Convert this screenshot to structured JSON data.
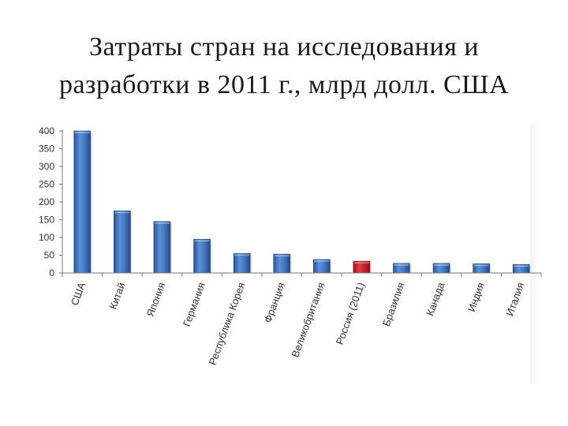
{
  "title": {
    "line1": "Затраты стран на исследования и",
    "line2": "разработки в 2011 г., млрд долл. США"
  },
  "colors": {
    "bar": "#3e6eb8",
    "highlight": "#c8202b",
    "axis": "#7a7a7a",
    "grid_shadow": "#eeeeee"
  },
  "chart_data": {
    "type": "bar",
    "title": "Затраты стран на исследования и разработки в 2011 г., млрд долл. США",
    "xlabel": "",
    "ylabel": "",
    "ylim": [
      0,
      400
    ],
    "yticks": [
      0,
      50,
      100,
      150,
      200,
      250,
      300,
      350,
      400
    ],
    "grid": false,
    "categories": [
      "США",
      "Китай",
      "Япония",
      "Германия",
      "Республика Корея",
      "Франция",
      "Великобритания",
      "Россия (2011)",
      "Бразилия",
      "Канада",
      "Индия",
      "Италия"
    ],
    "values": [
      405,
      175,
      145,
      95,
      55,
      53,
      38,
      33,
      27,
      27,
      26,
      24
    ],
    "highlight_category": "Россия (2011)"
  }
}
